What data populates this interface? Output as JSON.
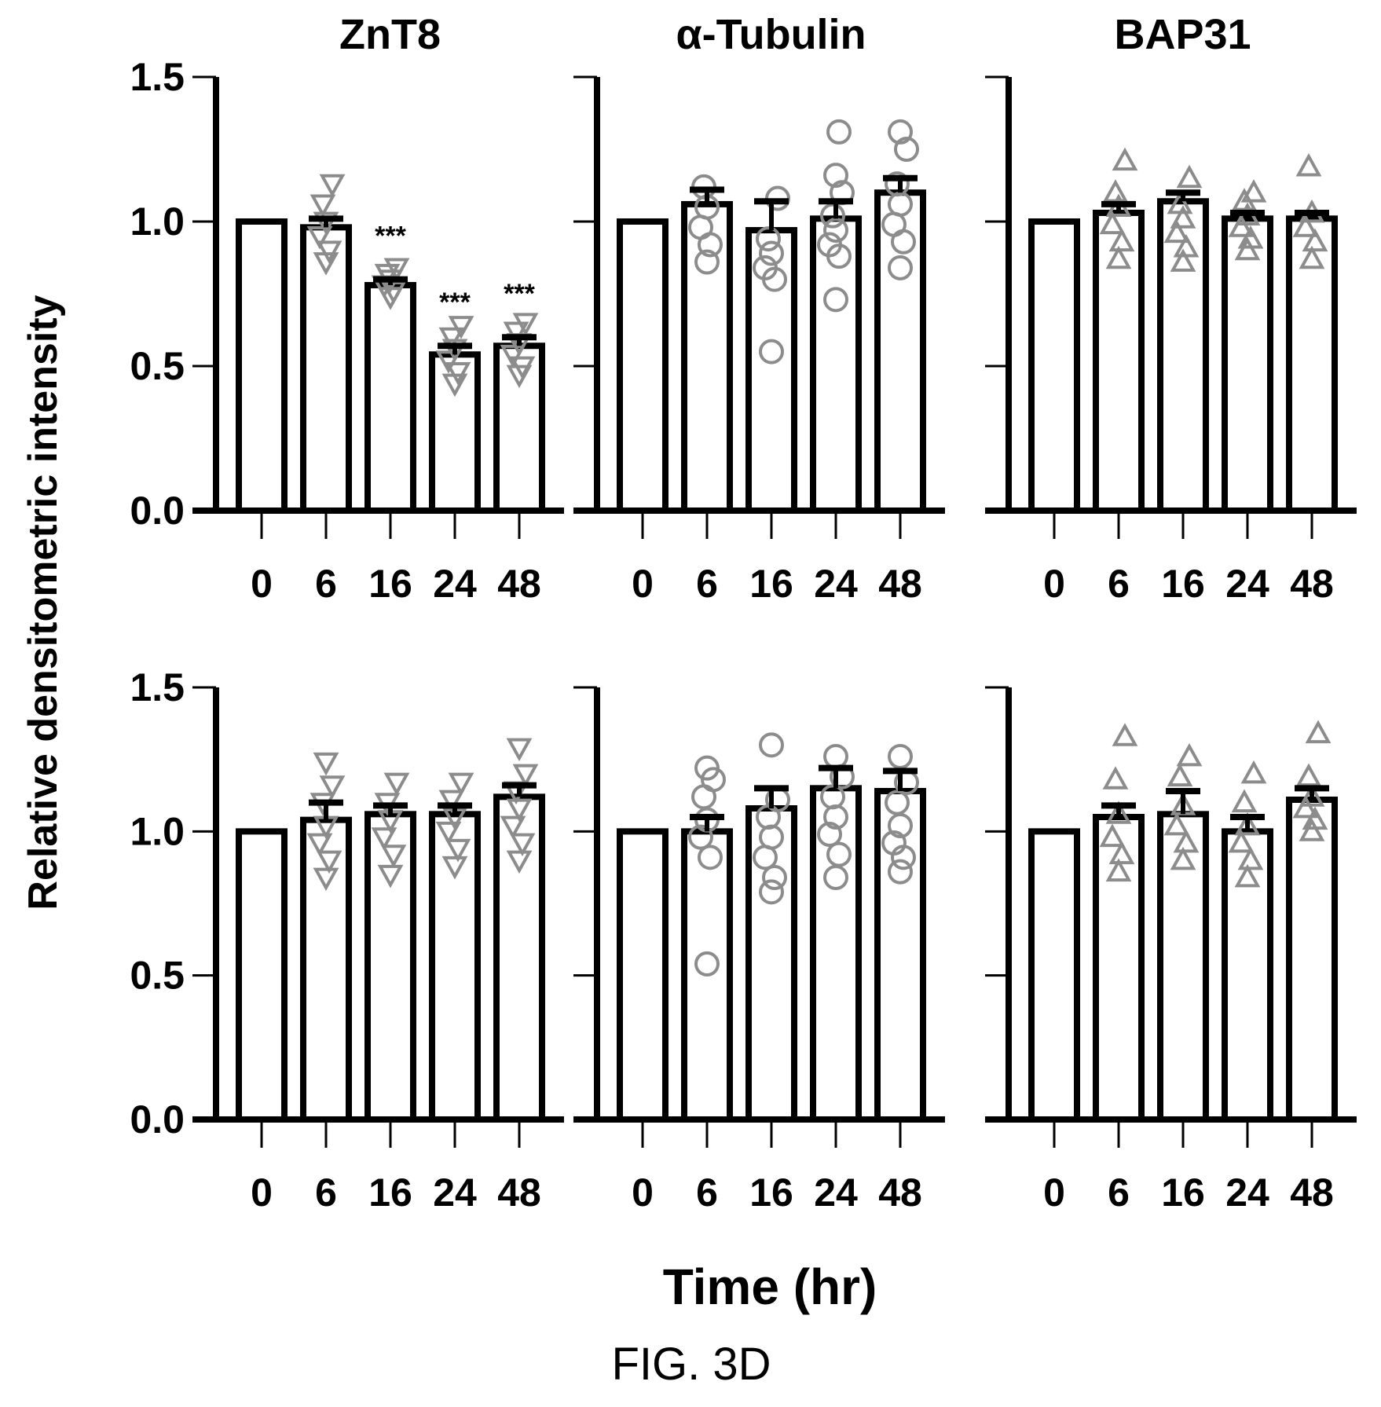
{
  "ylabel": "Relative densitometric intensity",
  "xlabel": "Time (hr)",
  "caption": "FIG. 3D",
  "colors": {
    "bar_fill": "#ffffff",
    "bar_stroke": "#000000",
    "marker": "#8c8c8c"
  },
  "chart_data": [
    {
      "type": "bar",
      "panel": "row1-col1",
      "title": "ZnT8",
      "marker": "down-triangle",
      "categories": [
        "0",
        "6",
        "16",
        "24",
        "48"
      ],
      "values": [
        1.0,
        0.98,
        0.78,
        0.54,
        0.57
      ],
      "errors": [
        0,
        0.03,
        0.02,
        0.03,
        0.03
      ],
      "points": [
        [],
        [
          0.86,
          0.9,
          0.95,
          1.0,
          1.06,
          1.13
        ],
        [
          0.74,
          0.76,
          0.78,
          0.8,
          0.82,
          0.84
        ],
        [
          0.44,
          0.48,
          0.52,
          0.56,
          0.6,
          0.64
        ],
        [
          0.47,
          0.5,
          0.54,
          0.58,
          0.62,
          0.65
        ]
      ],
      "annotations": [
        "",
        "",
        "***",
        "***",
        "***"
      ],
      "ylim": [
        0,
        1.5
      ],
      "yticks": [
        "0.0",
        "0.5",
        "1.0",
        "1.5"
      ]
    },
    {
      "type": "bar",
      "panel": "row1-col2",
      "title": "α-Tubulin",
      "marker": "circle",
      "categories": [
        "0",
        "6",
        "16",
        "24",
        "48"
      ],
      "values": [
        1.0,
        1.06,
        0.97,
        1.01,
        1.1
      ],
      "errors": [
        0,
        0.05,
        0.1,
        0.06,
        0.05
      ],
      "points": [
        [],
        [
          0.86,
          0.92,
          0.98,
          1.05,
          1.12
        ],
        [
          0.55,
          0.8,
          0.84,
          0.89,
          0.94,
          1.08
        ],
        [
          0.73,
          0.88,
          0.92,
          0.97,
          1.02,
          1.1,
          1.16,
          1.31
        ],
        [
          0.84,
          0.93,
          0.99,
          1.06,
          1.13,
          1.25,
          1.31
        ]
      ],
      "annotations": [
        "",
        "",
        "",
        "",
        ""
      ],
      "ylim": [
        0,
        1.5
      ],
      "yticks": [
        "",
        "",
        "",
        ""
      ]
    },
    {
      "type": "bar",
      "panel": "row1-col3",
      "title": "BAP31",
      "marker": "up-triangle",
      "categories": [
        "0",
        "6",
        "16",
        "24",
        "48"
      ],
      "values": [
        1.0,
        1.03,
        1.07,
        1.01,
        1.01
      ],
      "errors": [
        0,
        0.03,
        0.03,
        0.02,
        0.02
      ],
      "points": [
        [],
        [
          0.87,
          0.93,
          0.99,
          1.05,
          1.1,
          1.21
        ],
        [
          0.86,
          0.91,
          0.96,
          1.01,
          1.06,
          1.15
        ],
        [
          0.9,
          0.94,
          0.98,
          1.02,
          1.07,
          1.1
        ],
        [
          0.87,
          0.93,
          0.98,
          1.03,
          1.19
        ]
      ],
      "annotations": [
        "",
        "",
        "",
        "",
        ""
      ],
      "ylim": [
        0,
        1.5
      ],
      "yticks": [
        "",
        "",
        "",
        ""
      ]
    },
    {
      "type": "bar",
      "panel": "row2-col1",
      "title": "",
      "marker": "down-triangle",
      "categories": [
        "0",
        "6",
        "16",
        "24",
        "48"
      ],
      "values": [
        1.0,
        1.04,
        1.06,
        1.06,
        1.12
      ],
      "errors": [
        0,
        0.06,
        0.03,
        0.03,
        0.04
      ],
      "points": [
        [],
        [
          0.84,
          0.9,
          0.96,
          1.02,
          1.1,
          1.16,
          1.24
        ],
        [
          0.85,
          0.92,
          0.98,
          1.04,
          1.1,
          1.17
        ],
        [
          0.88,
          0.94,
          1.0,
          1.05,
          1.11,
          1.17
        ],
        [
          0.9,
          0.96,
          1.02,
          1.08,
          1.14,
          1.2,
          1.29
        ]
      ],
      "annotations": [
        "",
        "",
        "",
        "",
        ""
      ],
      "ylim": [
        0,
        1.5
      ],
      "yticks": [
        "0.0",
        "0.5",
        "1.0",
        "1.5"
      ]
    },
    {
      "type": "bar",
      "panel": "row2-col2",
      "title": "",
      "marker": "circle",
      "categories": [
        "0",
        "6",
        "16",
        "24",
        "48"
      ],
      "values": [
        1.0,
        1.0,
        1.08,
        1.15,
        1.14
      ],
      "errors": [
        0,
        0.05,
        0.07,
        0.07,
        0.07
      ],
      "points": [
        [],
        [
          0.54,
          0.91,
          0.98,
          1.04,
          1.12,
          1.18,
          1.22
        ],
        [
          0.79,
          0.84,
          0.91,
          0.98,
          1.05,
          1.11,
          1.3
        ],
        [
          0.84,
          0.92,
          0.99,
          1.05,
          1.12,
          1.19,
          1.26
        ],
        [
          0.86,
          0.91,
          0.96,
          1.02,
          1.1,
          1.17,
          1.26
        ]
      ],
      "annotations": [
        "",
        "",
        "",
        "",
        ""
      ],
      "ylim": [
        0,
        1.5
      ],
      "yticks": [
        "",
        "",
        "",
        ""
      ]
    },
    {
      "type": "bar",
      "panel": "row2-col3",
      "title": "",
      "marker": "up-triangle",
      "categories": [
        "0",
        "6",
        "16",
        "24",
        "48"
      ],
      "values": [
        1.0,
        1.05,
        1.06,
        1.0,
        1.11
      ],
      "errors": [
        0,
        0.04,
        0.08,
        0.05,
        0.04
      ],
      "points": [
        [],
        [
          0.86,
          0.92,
          0.98,
          1.06,
          1.18,
          1.33
        ],
        [
          0.9,
          0.96,
          1.02,
          1.09,
          1.19,
          1.26
        ],
        [
          0.84,
          0.9,
          0.96,
          1.02,
          1.1,
          1.2
        ],
        [
          1.0,
          1.04,
          1.08,
          1.12,
          1.19,
          1.34
        ]
      ],
      "annotations": [
        "",
        "",
        "",
        "",
        ""
      ],
      "ylim": [
        0,
        1.5
      ],
      "yticks": [
        "",
        "",
        "",
        ""
      ]
    }
  ]
}
